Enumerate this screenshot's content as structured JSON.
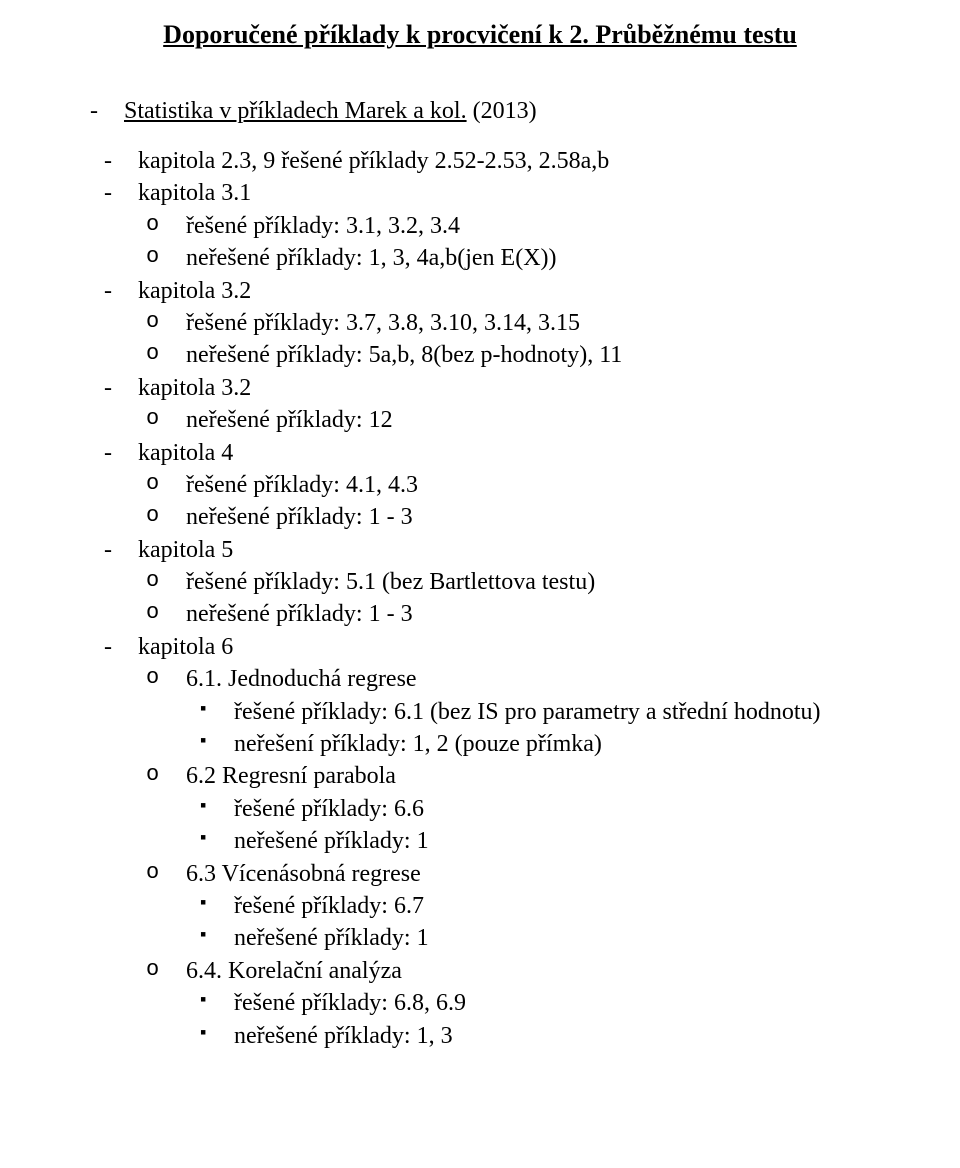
{
  "title": "Doporučené příklady k procvičení k 2. Průběžnému testu",
  "source_prefix": "-",
  "source_text": "Statistika v příkladech Marek a kol.",
  "source_year": " (2013)",
  "chapters": [
    {
      "heading": "kapitola 2.3, 9 řešené příklady  2.52-2.53, 2.58a,b",
      "subs": []
    },
    {
      "heading": "kapitola 3.1",
      "subs": [
        {
          "text": "řešené příklady: 3.1, 3.2, 3.4",
          "subsubs": []
        },
        {
          "text": "neřešené příklady: 1, 3, 4a,b(jen E(X))",
          "subsubs": []
        }
      ]
    },
    {
      "heading": "kapitola 3.2",
      "subs": [
        {
          "text": "řešené příklady: 3.7, 3.8, 3.10, 3.14, 3.15",
          "subsubs": []
        },
        {
          "text": "neřešené příklady: 5a,b, 8(bez p-hodnoty), 11",
          "subsubs": []
        }
      ]
    },
    {
      "heading": "kapitola 3.2",
      "subs": [
        {
          "text": "neřešené příklady: 12",
          "subsubs": []
        }
      ]
    },
    {
      "heading": "kapitola 4",
      "subs": [
        {
          "text": "řešené příklady: 4.1, 4.3",
          "subsubs": []
        },
        {
          "text": "neřešené příklady: 1 - 3",
          "subsubs": []
        }
      ]
    },
    {
      "heading": "kapitola 5",
      "subs": [
        {
          "text": "řešené příklady: 5.1 (bez Bartlettova testu)",
          "subsubs": []
        },
        {
          "text": "neřešené příklady: 1 - 3",
          "subsubs": []
        }
      ]
    },
    {
      "heading": "kapitola 6",
      "subs": [
        {
          "text": "6.1. Jednoduchá regrese",
          "subsubs": [
            "řešené příklady: 6.1 (bez IS pro parametry a střední hodnotu)",
            "neřešení příklady: 1, 2 (pouze přímka)"
          ]
        },
        {
          "text": "6.2 Regresní parabola",
          "subsubs": [
            "řešené příklady: 6.6",
            "neřešené příklady: 1"
          ]
        },
        {
          "text": "6.3 Vícenásobná regrese",
          "subsubs": [
            "řešené příklady: 6.7",
            "neřešené příklady: 1"
          ]
        },
        {
          "text": "6.4. Korelační analýza",
          "subsubs": [
            "řešené příklady: 6.8, 6.9",
            "neřešené příklady: 1, 3"
          ]
        }
      ]
    }
  ],
  "colors": {
    "background": "#ffffff",
    "text": "#000000"
  },
  "typography": {
    "font_family": "Times New Roman",
    "title_fontsize": 26,
    "body_fontsize": 24
  }
}
